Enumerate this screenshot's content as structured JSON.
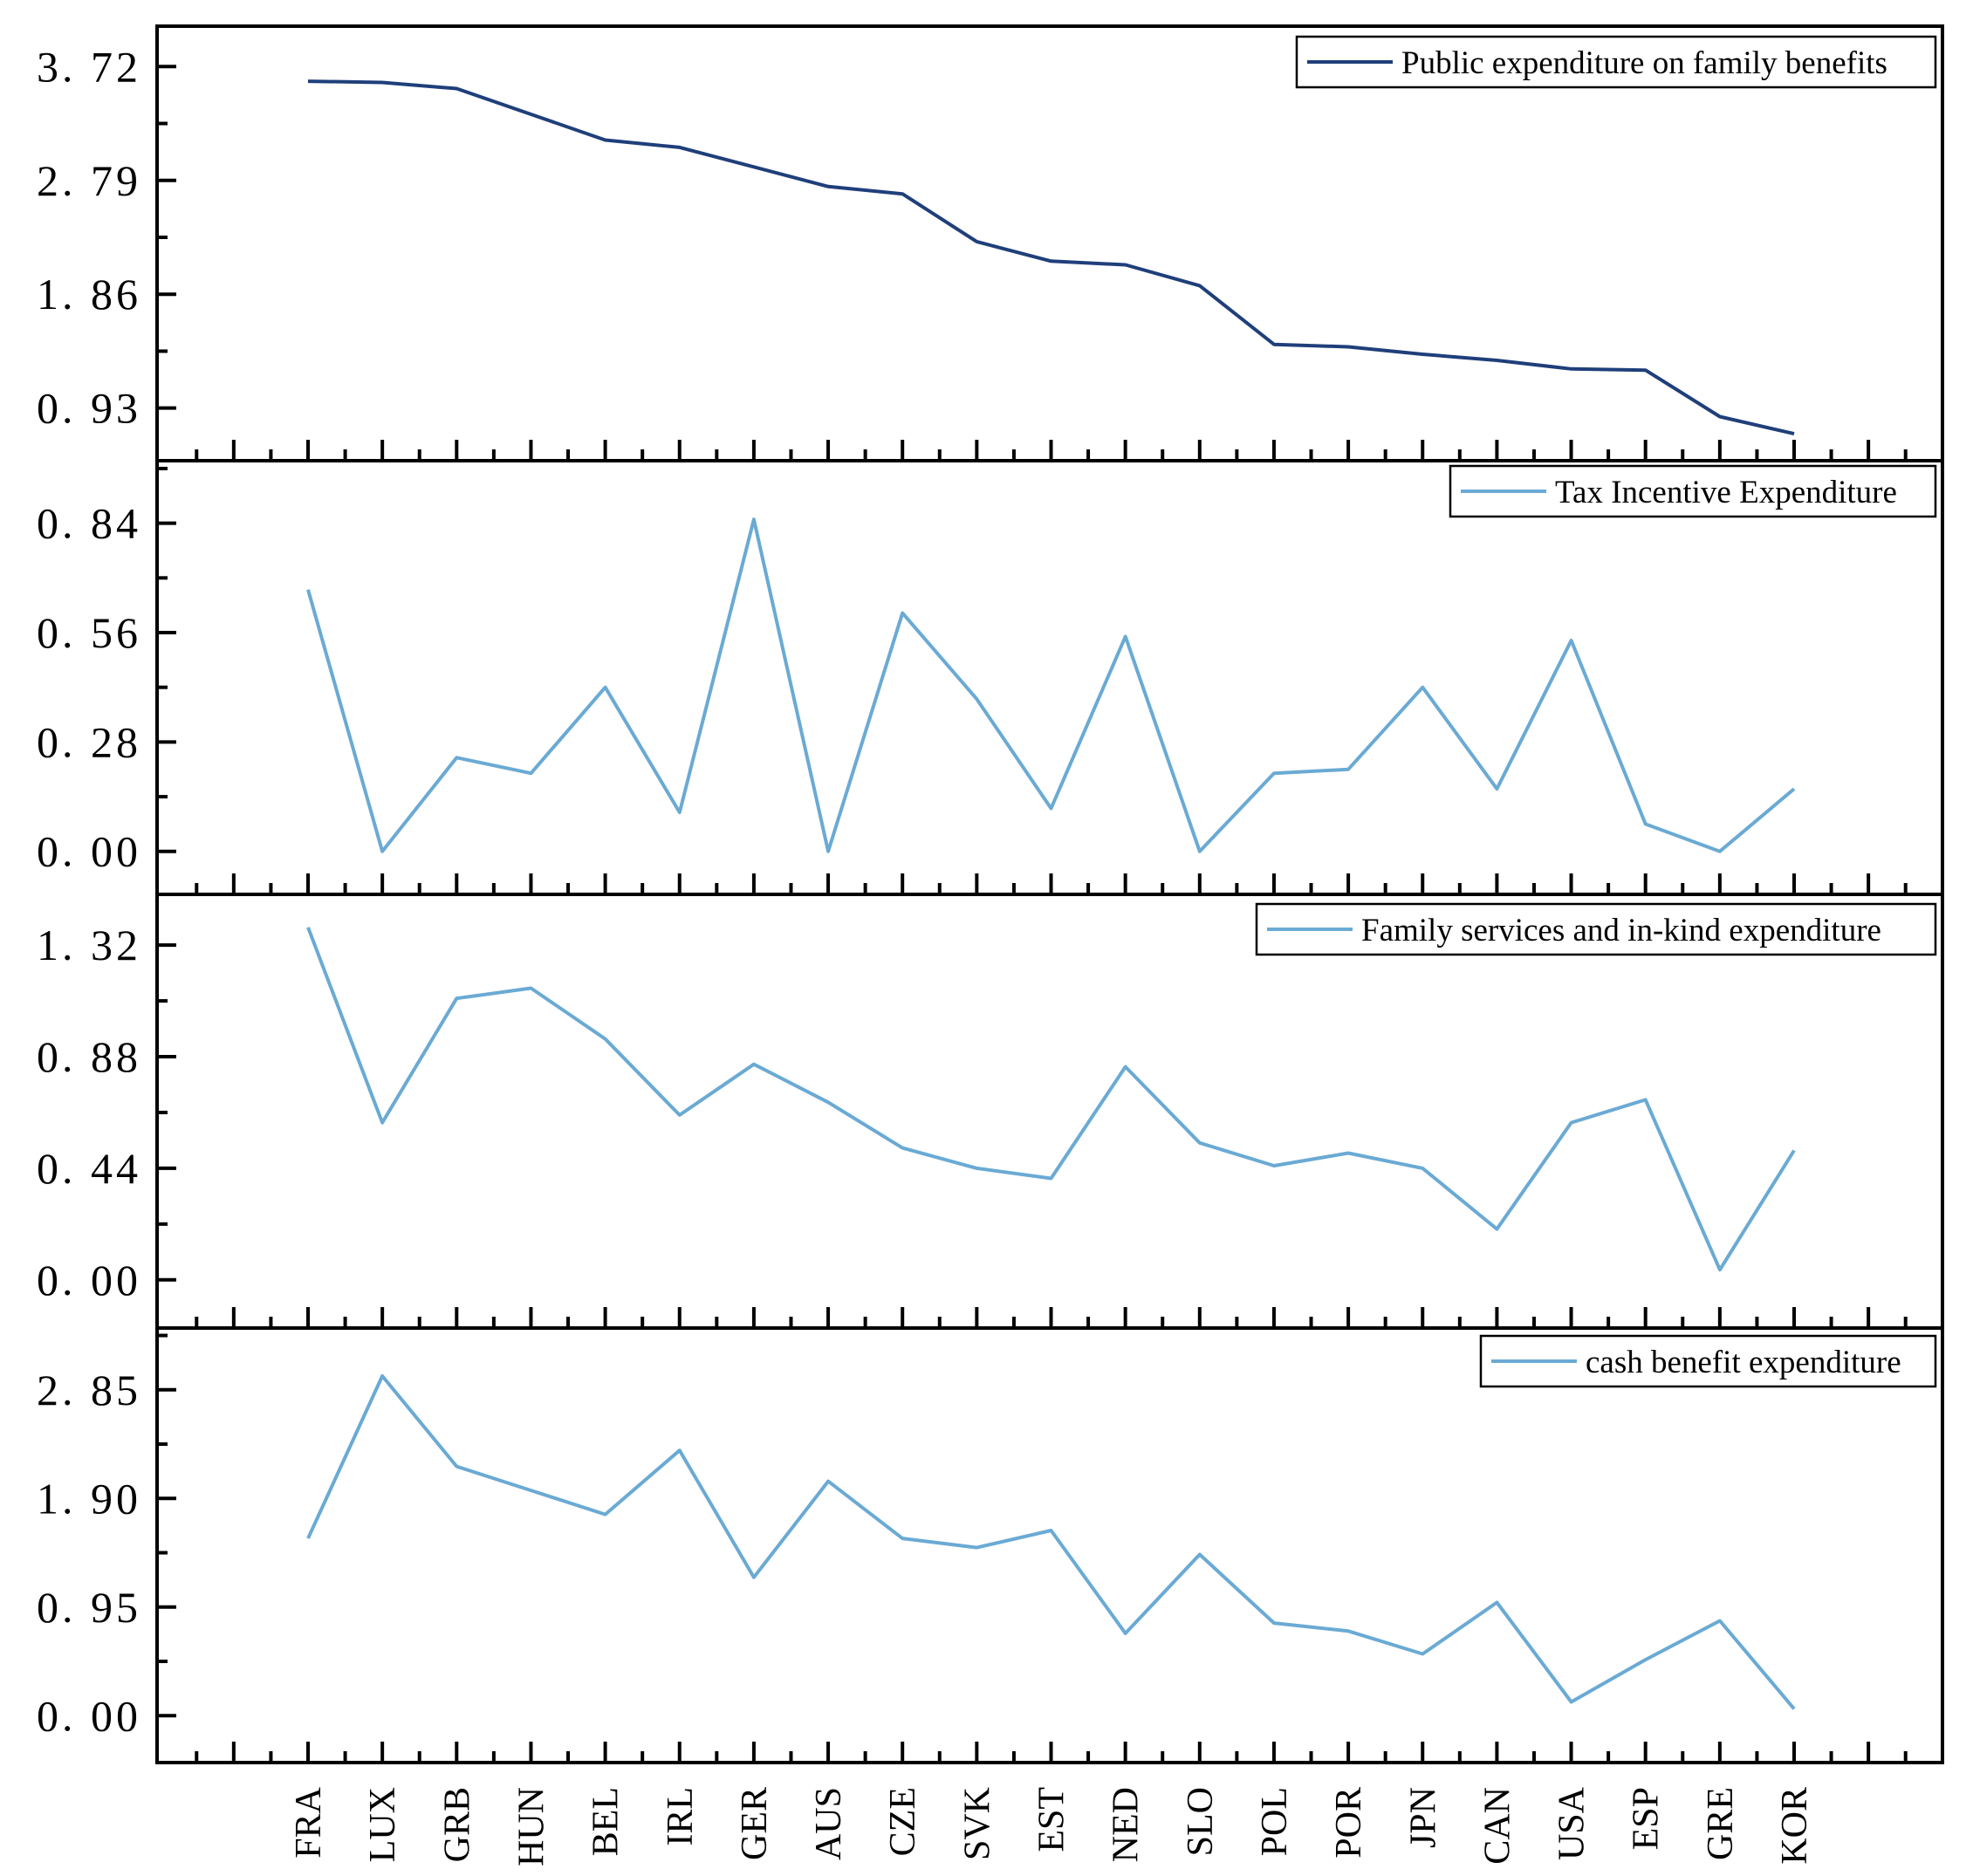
{
  "chart_data": {
    "type": "line",
    "categories": [
      "FRA",
      "LUX",
      "GRB",
      "HUN",
      "BEL",
      "IRL",
      "GER",
      "AUS",
      "CZE",
      "SVK",
      "EST",
      "NED",
      "SLO",
      "POL",
      "POR",
      "JPN",
      "CAN",
      "USA",
      "ESP",
      "GRE",
      "KOR"
    ],
    "panels": [
      {
        "series_name": "Public expenditure on family benefits",
        "color": "#1f3f7a",
        "ylim": [
          0.5,
          4.05
        ],
        "ticks": [
          "3. 72",
          "2. 79",
          "1. 86",
          "0. 93"
        ],
        "tick_values": [
          3.72,
          2.79,
          1.86,
          0.93
        ],
        "values": [
          3.6,
          3.59,
          3.54,
          3.33,
          3.12,
          3.06,
          2.9,
          2.74,
          2.68,
          2.29,
          2.13,
          2.1,
          1.93,
          1.45,
          1.43,
          1.37,
          1.32,
          1.25,
          1.24,
          0.86,
          0.72
        ]
      },
      {
        "series_name": "Tax Incentive Expenditure",
        "color": "#6aaad4",
        "ylim": [
          -0.11,
          1.0
        ],
        "ticks": [
          "0. 84",
          "0. 56",
          "0. 28",
          "0. 00"
        ],
        "tick_values": [
          0.84,
          0.56,
          0.28,
          0.0
        ],
        "values": [
          0.67,
          0.0,
          0.24,
          0.2,
          0.42,
          0.1,
          0.85,
          0.0,
          0.61,
          0.39,
          0.11,
          0.55,
          0.0,
          0.2,
          0.21,
          0.42,
          0.16,
          0.54,
          0.07,
          0.0,
          0.16
        ]
      },
      {
        "series_name": "Family services and in-kind expenditure",
        "color": "#6aaad4",
        "ylim": [
          -0.19,
          1.52
        ],
        "ticks": [
          "1. 32",
          "0. 88",
          "0. 44",
          "0. 00"
        ],
        "tick_values": [
          1.32,
          0.88,
          0.44,
          0.0
        ],
        "values": [
          1.39,
          0.62,
          1.11,
          1.15,
          0.95,
          0.65,
          0.85,
          0.7,
          0.52,
          0.44,
          0.4,
          0.84,
          0.54,
          0.45,
          0.5,
          0.44,
          0.2,
          0.62,
          0.71,
          0.04,
          0.51
        ]
      },
      {
        "series_name": "cash benefit expenditure",
        "color": "#6aaad4",
        "ylim": [
          -0.41,
          3.39
        ],
        "ticks": [
          "2. 85",
          "1. 90",
          "0. 95",
          "0. 00"
        ],
        "tick_values": [
          2.85,
          1.9,
          0.95,
          0.0
        ],
        "values": [
          1.55,
          2.97,
          2.18,
          1.97,
          1.76,
          2.32,
          1.21,
          2.05,
          1.55,
          1.47,
          1.62,
          0.72,
          1.41,
          0.81,
          0.74,
          0.54,
          0.99,
          0.12,
          0.49,
          0.83,
          0.06
        ]
      }
    ]
  }
}
